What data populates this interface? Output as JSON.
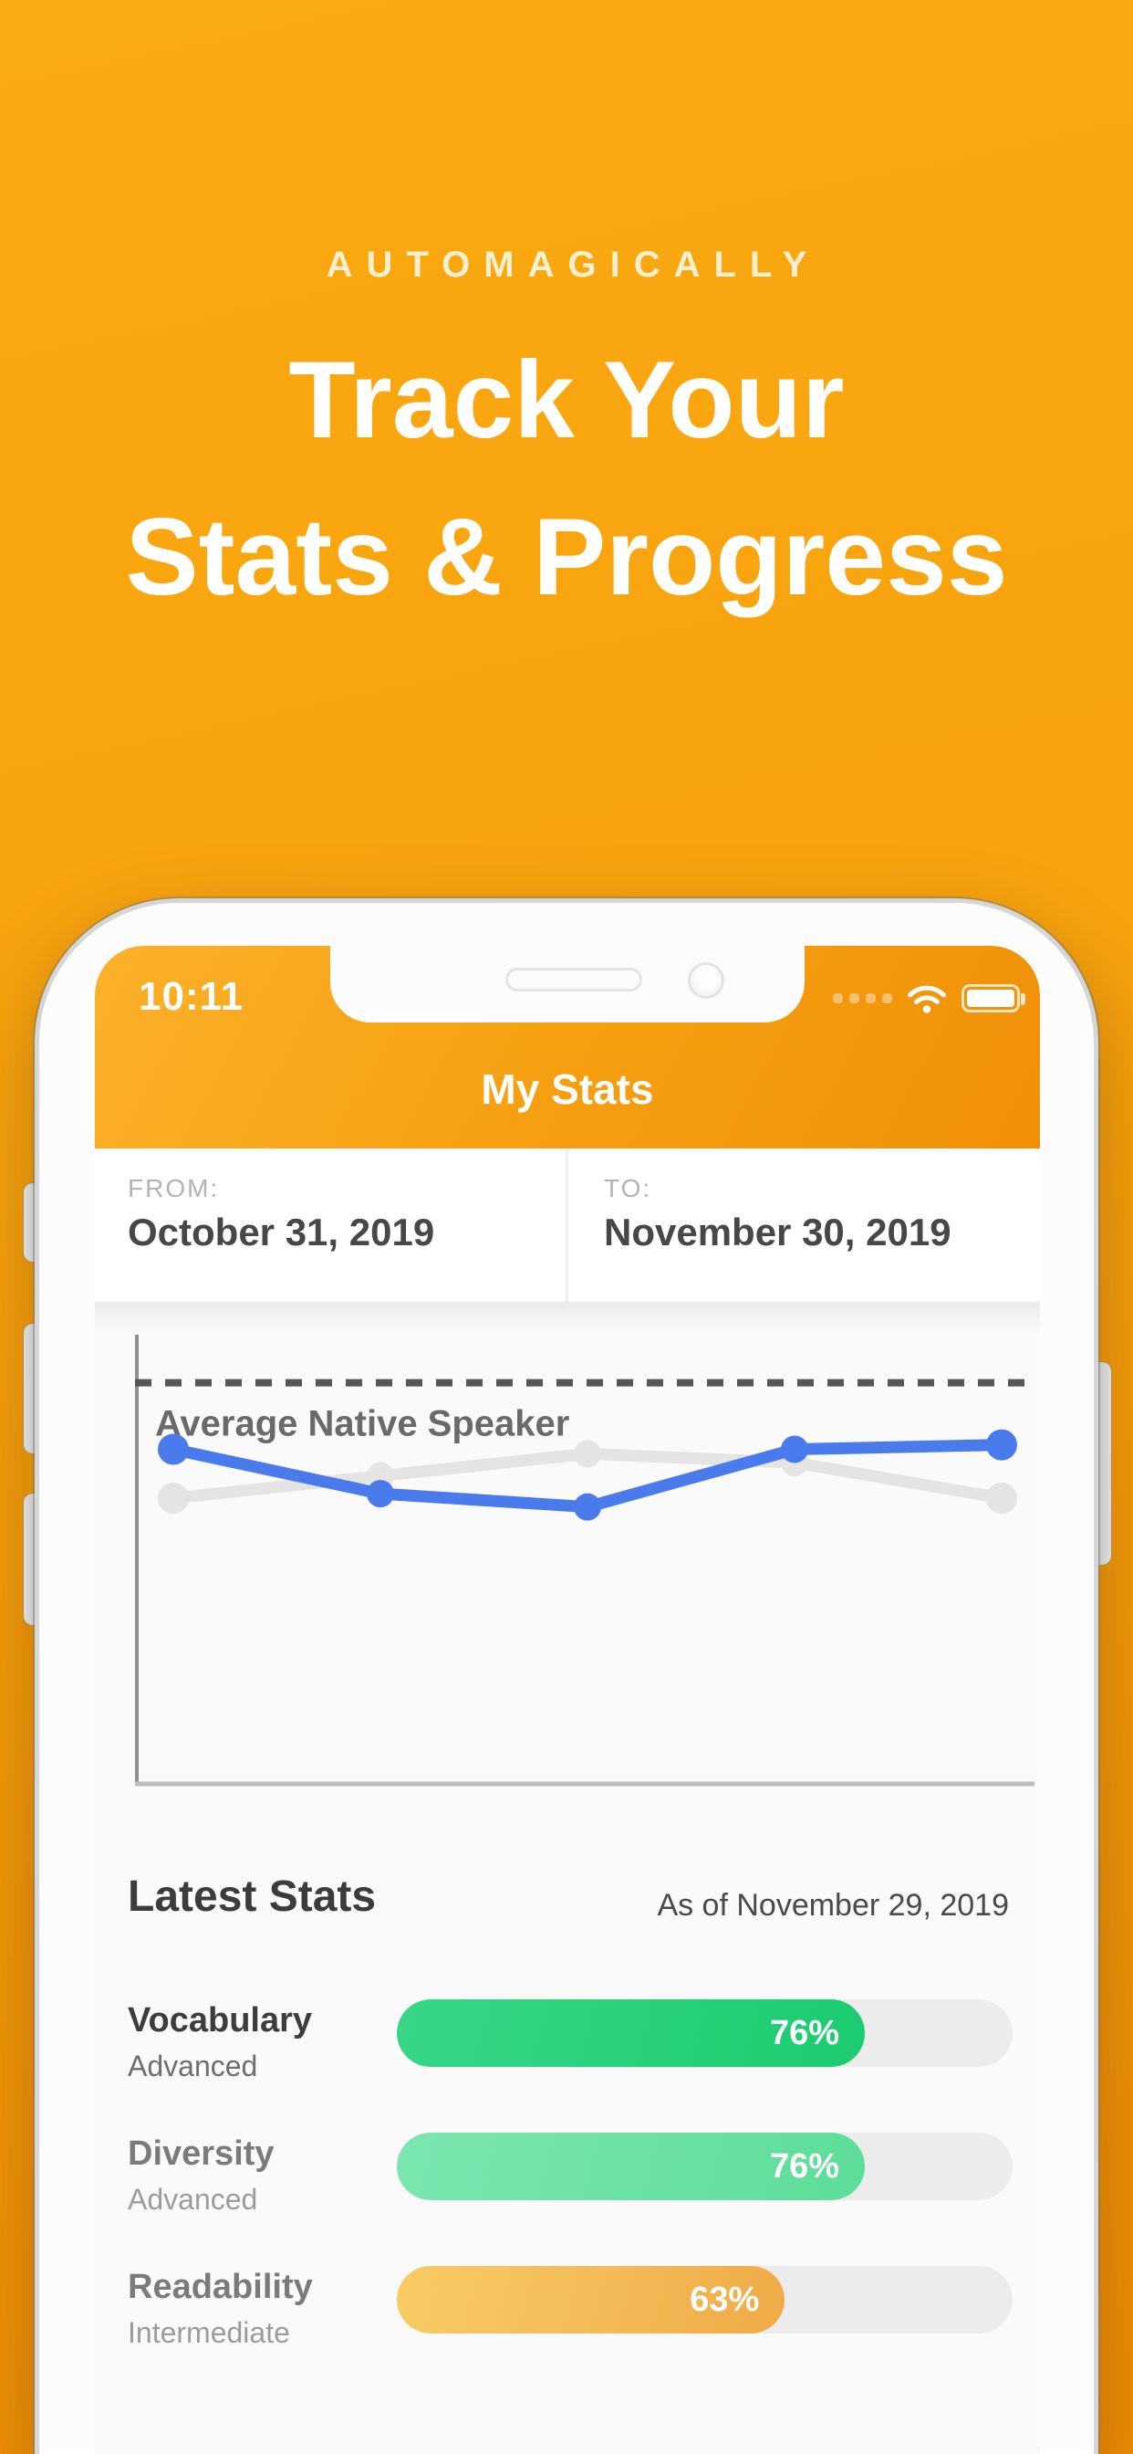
{
  "hero": {
    "eyebrow": "AUTOMAGICALLY",
    "title_line_1": "Track Your",
    "title_line_2": "Stats & Progress"
  },
  "colors": {
    "background_top": "#FAAA12",
    "background_bottom": "#F08C05",
    "header_gradient_start": "#FBB12B",
    "header_gradient_end": "#F09008",
    "progress_track": "#ECECEC",
    "primary_line_blue": "#4A7BEC",
    "comparison_line_gray": "#E4E4E4"
  },
  "phone": {
    "status_bar": {
      "time": "10:11",
      "icons": [
        "cellular-signal-dots",
        "wifi",
        "battery-full"
      ]
    },
    "nav_title": "My Stats",
    "date_range": {
      "from_label": "FROM:",
      "from_value": "October 31, 2019",
      "to_label": "TO:",
      "to_value": "November 30, 2019"
    },
    "latest_stats": {
      "heading": "Latest Stats",
      "as_of": "As of November 29, 2019",
      "rows": [
        {
          "name": "Vocabulary",
          "level": "Advanced",
          "percent": 76,
          "percent_label": "76%",
          "colors": {
            "start": "#36D787",
            "end": "#1CCB6F"
          }
        },
        {
          "name": "Diversity",
          "level": "Advanced",
          "percent": 76,
          "percent_label": "76%",
          "colors": {
            "start": "#7CE6B0",
            "end": "#5CDD99"
          }
        },
        {
          "name": "Readability",
          "level": "Intermediate",
          "percent": 63,
          "percent_label": "63%",
          "colors": {
            "start": "#F8CC66",
            "end": "#EFAB47"
          }
        }
      ]
    }
  },
  "chart_data": {
    "type": "line",
    "x": [
      1,
      2,
      3,
      4,
      5
    ],
    "x_labels": [],
    "ylim": [
      0,
      100
    ],
    "grid": false,
    "legend": "none",
    "series": [
      {
        "name": "primary-score",
        "color": "#4A7BEC",
        "values": [
          75,
          65,
          62,
          75,
          76
        ]
      },
      {
        "name": "comparison-score",
        "color": "#E4E4E4",
        "values": [
          64,
          69,
          74,
          72,
          64
        ]
      }
    ],
    "reference_line": {
      "label": "Average Native Speaker",
      "value": 90,
      "style": "dashed",
      "color": "#565656",
      "label_color": "#6A6A6A"
    }
  }
}
